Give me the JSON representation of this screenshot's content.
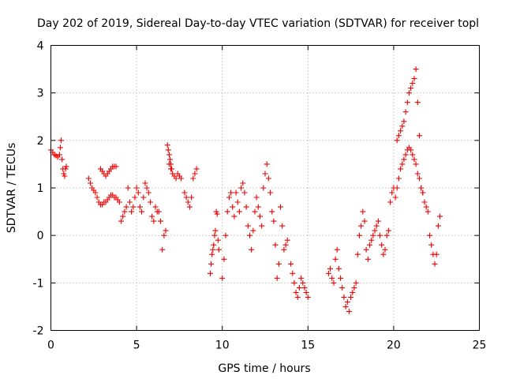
{
  "chart_data": {
    "type": "scatter",
    "title": "Day 202 of 2019, Sidereal Day-to-day VTEC variation (SDTVAR) for receiver topl",
    "xlabel": "GPS time / hours",
    "ylabel": "SDTVAR / TECUs",
    "xlim": [
      0,
      25
    ],
    "ylim": [
      -2,
      4
    ],
    "xticks": [
      "0",
      "5",
      "10",
      "15",
      "20",
      "25"
    ],
    "yticks": [
      "-2",
      "-1",
      "0",
      "1",
      "2",
      "3",
      "4"
    ],
    "grid": true,
    "marker": "+",
    "color": "#ee0000",
    "series": [
      {
        "name": "topl",
        "x": [
          0.0,
          0.1,
          0.2,
          0.3,
          0.4,
          0.5,
          0.55,
          0.6,
          0.65,
          0.7,
          0.75,
          0.8,
          0.85,
          0.9,
          2.2,
          2.3,
          2.4,
          2.5,
          2.6,
          2.7,
          2.8,
          2.9,
          3.0,
          3.1,
          3.2,
          3.3,
          3.4,
          3.5,
          3.6,
          3.7,
          3.8,
          3.9,
          4.0,
          2.9,
          3.0,
          3.1,
          3.2,
          3.3,
          3.4,
          3.5,
          3.6,
          3.7,
          3.8,
          4.1,
          4.2,
          4.3,
          4.4,
          4.5,
          4.6,
          4.7,
          4.8,
          4.9,
          5.0,
          5.1,
          5.2,
          5.3,
          5.4,
          5.5,
          5.6,
          5.7,
          5.8,
          5.9,
          6.0,
          6.1,
          6.2,
          6.3,
          6.4,
          6.5,
          6.6,
          6.7,
          6.9,
          7.0,
          7.1,
          7.2,
          7.3,
          7.4,
          7.5,
          7.6,
          6.8,
          6.85,
          6.9,
          6.95,
          7.0,
          7.05,
          7.8,
          7.9,
          8.0,
          8.1,
          8.2,
          8.3,
          8.4,
          8.5,
          9.3,
          9.35,
          9.4,
          9.45,
          9.5,
          9.55,
          9.6,
          9.65,
          9.7,
          9.75,
          9.8,
          10.0,
          10.1,
          10.2,
          10.3,
          10.4,
          10.5,
          10.6,
          10.7,
          10.8,
          10.9,
          11.0,
          11.1,
          11.2,
          11.3,
          11.4,
          11.5,
          11.6,
          11.7,
          11.8,
          11.9,
          12.0,
          12.1,
          12.2,
          12.3,
          12.4,
          12.5,
          12.6,
          12.7,
          12.8,
          12.9,
          13.0,
          13.1,
          13.2,
          13.3,
          13.4,
          13.5,
          13.6,
          13.7,
          13.8,
          14.0,
          14.1,
          14.2,
          14.3,
          14.4,
          14.5,
          14.6,
          14.7,
          14.8,
          14.9,
          15.0,
          16.2,
          16.3,
          16.4,
          16.5,
          16.6,
          16.7,
          16.8,
          16.9,
          17.0,
          17.1,
          17.2,
          17.3,
          17.4,
          17.5,
          17.6,
          17.7,
          17.8,
          17.9,
          18.0,
          18.1,
          18.2,
          18.3,
          18.4,
          18.5,
          18.6,
          18.7,
          18.8,
          18.9,
          19.0,
          19.1,
          19.2,
          19.3,
          19.4,
          19.5,
          19.6,
          19.7,
          19.8,
          19.9,
          20.0,
          20.1,
          20.2,
          20.3,
          20.4,
          20.5,
          20.6,
          20.7,
          20.8,
          20.9,
          21.0,
          21.1,
          21.2,
          21.3,
          21.4,
          21.5,
          21.6,
          21.7,
          20.2,
          20.3,
          20.4,
          20.5,
          20.6,
          20.7,
          20.8,
          20.9,
          21.0,
          21.1,
          21.2,
          21.3,
          21.4,
          21.5,
          21.6,
          21.7,
          21.8,
          21.9,
          22.0,
          22.1,
          22.2,
          22.3,
          22.4,
          22.5,
          22.6,
          22.7
        ],
        "y": [
          1.8,
          1.75,
          1.7,
          1.68,
          1.65,
          1.7,
          1.85,
          2.0,
          1.6,
          1.4,
          1.3,
          1.25,
          1.4,
          1.45,
          1.2,
          1.1,
          1.0,
          0.95,
          0.9,
          0.8,
          0.7,
          0.65,
          0.65,
          0.7,
          0.7,
          0.75,
          0.8,
          0.85,
          0.85,
          0.8,
          0.8,
          0.75,
          0.7,
          1.4,
          1.35,
          1.3,
          1.25,
          1.3,
          1.35,
          1.4,
          1.45,
          1.45,
          1.45,
          0.3,
          0.4,
          0.5,
          0.6,
          1.0,
          0.7,
          0.5,
          0.6,
          0.8,
          1.0,
          0.9,
          0.6,
          0.5,
          0.8,
          1.1,
          1.0,
          0.9,
          0.7,
          0.4,
          0.3,
          0.6,
          0.5,
          0.5,
          0.3,
          -0.3,
          0.0,
          0.1,
          1.5,
          1.4,
          1.3,
          1.25,
          1.2,
          1.3,
          1.25,
          1.2,
          1.9,
          1.8,
          1.7,
          1.6,
          1.5,
          1.4,
          0.9,
          0.8,
          0.7,
          0.6,
          0.8,
          1.2,
          1.3,
          1.4,
          -0.8,
          -0.6,
          -0.4,
          -0.3,
          -0.2,
          0.0,
          0.1,
          0.5,
          0.45,
          -0.1,
          -0.3,
          -0.9,
          -0.5,
          0.0,
          0.5,
          0.8,
          0.9,
          0.6,
          0.4,
          0.9,
          0.7,
          0.5,
          1.0,
          1.1,
          0.9,
          0.6,
          0.2,
          0.0,
          -0.3,
          0.1,
          0.5,
          0.8,
          0.6,
          0.4,
          0.2,
          1.0,
          1.3,
          1.5,
          1.2,
          0.9,
          0.5,
          0.3,
          -0.2,
          -0.9,
          -0.6,
          0.6,
          0.2,
          -0.3,
          -0.2,
          -0.1,
          -0.6,
          -0.8,
          -1.0,
          -1.2,
          -1.3,
          -1.1,
          -0.9,
          -1.0,
          -1.1,
          -1.2,
          -1.3,
          -0.8,
          -0.7,
          -0.9,
          -1.0,
          -0.5,
          -0.3,
          -0.7,
          -0.9,
          -1.1,
          -1.3,
          -1.5,
          -1.4,
          -1.6,
          -1.3,
          -1.2,
          -1.1,
          -1.0,
          -0.4,
          0.0,
          0.2,
          0.5,
          0.3,
          -0.3,
          -0.5,
          -0.2,
          -0.1,
          0.0,
          0.1,
          0.2,
          0.3,
          0.0,
          -0.2,
          -0.4,
          -0.3,
          0.0,
          0.1,
          0.7,
          0.9,
          1.0,
          0.8,
          1.0,
          1.2,
          1.4,
          1.5,
          1.6,
          1.7,
          1.8,
          1.85,
          1.8,
          1.7,
          1.6,
          1.5,
          1.3,
          1.2,
          1.0,
          0.9,
          2.0,
          2.1,
          2.2,
          2.3,
          2.4,
          2.6,
          2.8,
          3.0,
          3.1,
          3.2,
          3.3,
          3.5,
          2.8,
          2.1,
          1.0,
          0.9,
          0.7,
          0.6,
          0.5,
          0.0,
          -0.2,
          -0.4,
          -0.6,
          -0.4,
          0.2,
          0.4
        ]
      }
    ]
  }
}
